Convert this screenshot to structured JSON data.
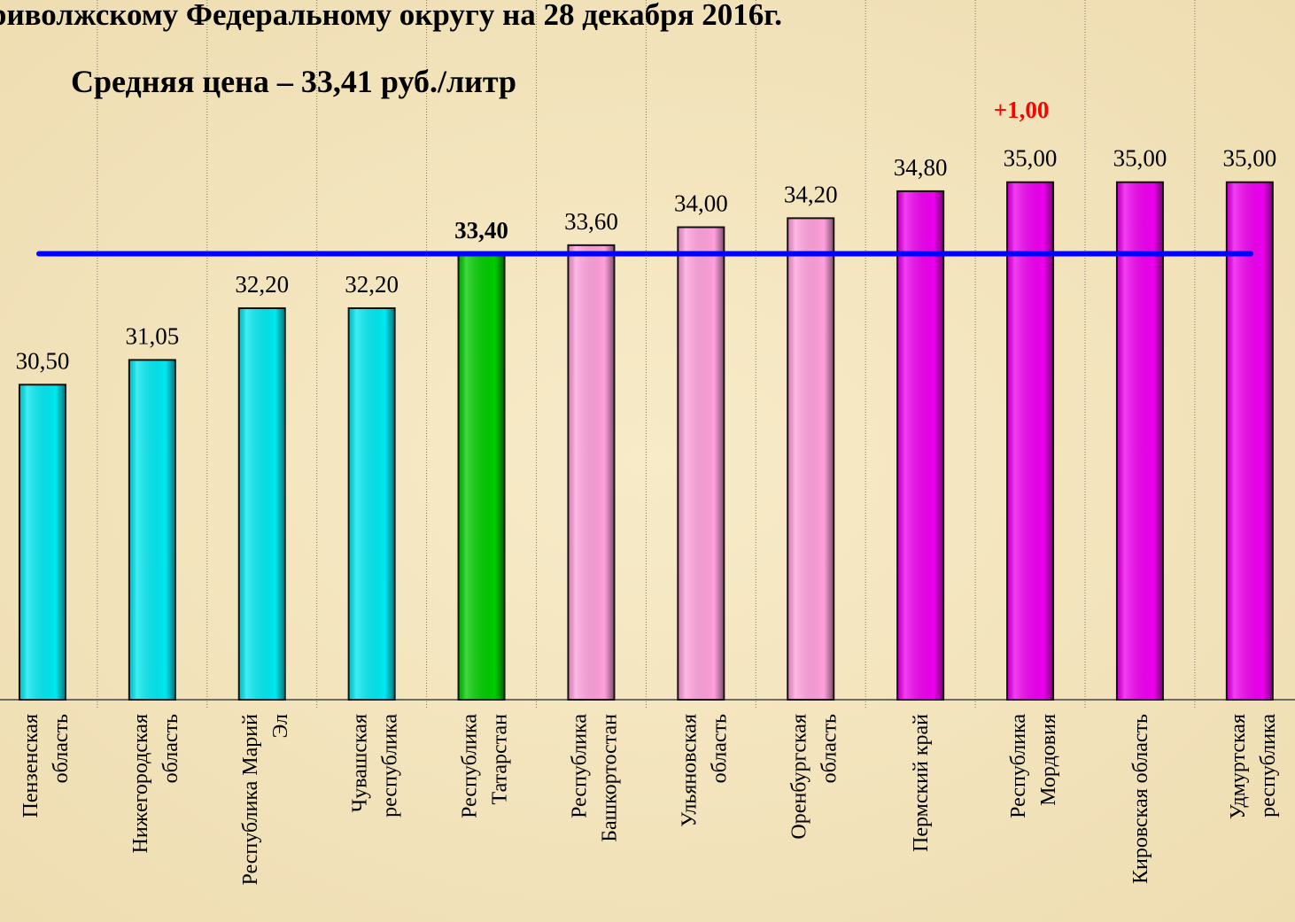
{
  "chart_data": {
    "type": "bar",
    "title": "риволжскому Федеральному округу на 28 декабря 2016г.",
    "subtitle": "Средняя цена – 33,41 руб./литр",
    "categories": [
      "Пензенская\nобласть",
      "Нижегородская\nобласть",
      "Республика Марий\nЭл",
      "Чувашская\nреспублика",
      "Республика\nТатарстан",
      "Республика\nБашкортостан",
      "Ульяновская\nобласть",
      "Оренбургская\nобласть",
      "Пермский край",
      "Республика\nМордовия",
      "Кировская область",
      "Удмуртская\nреспублика"
    ],
    "values": [
      30.5,
      31.05,
      32.2,
      32.2,
      33.4,
      33.6,
      34.0,
      34.2,
      34.8,
      35.0,
      35.0,
      35.0
    ],
    "value_labels": [
      "30,50",
      "31,05",
      "32,20",
      "32,20",
      "33,40",
      "33,60",
      "34,00",
      "34,20",
      "34,80",
      "35,00",
      "35,00",
      "35,00"
    ],
    "colors": [
      "#00e8f0",
      "#00e8f0",
      "#00e8f0",
      "#00e8f0",
      "#00cc00",
      "#ffa0dc",
      "#ffa0dc",
      "#ffa0dc",
      "#ee00ee",
      "#ee00ee",
      "#ee00ee",
      "#ee00ee"
    ],
    "highlight_index": 4,
    "average_line": {
      "value": 33.41,
      "color": "#0000ff"
    },
    "annotation": {
      "text": "+1,00",
      "category_index": 9,
      "color": "#ff0000"
    },
    "ylim": [
      23.5,
      35.9
    ]
  }
}
